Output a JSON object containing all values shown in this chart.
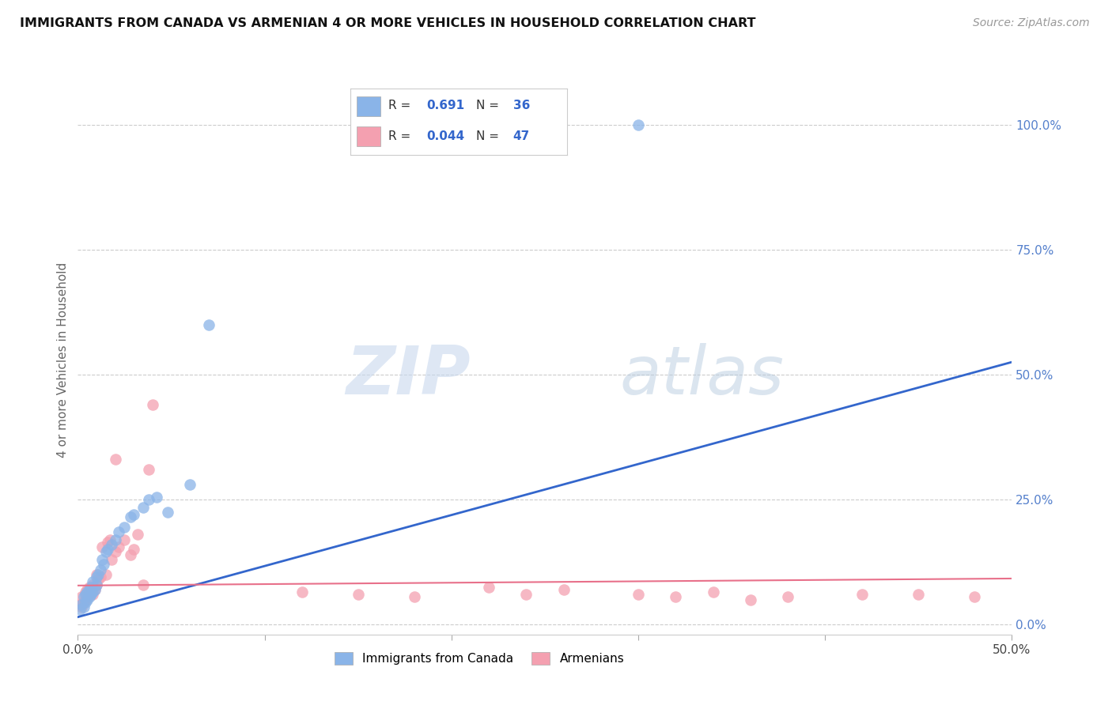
{
  "title": "IMMIGRANTS FROM CANADA VS ARMENIAN 4 OR MORE VEHICLES IN HOUSEHOLD CORRELATION CHART",
  "source": "Source: ZipAtlas.com",
  "ylabel": "4 or more Vehicles in Household",
  "xlim": [
    0.0,
    0.5
  ],
  "ylim": [
    -0.02,
    1.08
  ],
  "xticks": [
    0.0,
    0.1,
    0.2,
    0.3,
    0.4,
    0.5
  ],
  "xtick_labels": [
    "0.0%",
    "",
    "",
    "",
    "",
    "50.0%"
  ],
  "ytick_labels_right": [
    "0.0%",
    "25.0%",
    "50.0%",
    "75.0%",
    "100.0%"
  ],
  "ytick_positions_right": [
    0.0,
    0.25,
    0.5,
    0.75,
    1.0
  ],
  "legend_R1": "0.691",
  "legend_N1": "36",
  "legend_R2": "0.044",
  "legend_N2": "47",
  "legend_label1": "Immigrants from Canada",
  "legend_label2": "Armenians",
  "color_blue": "#8ab4e8",
  "color_pink": "#f4a0b0",
  "color_line_blue": "#3366CC",
  "color_line_pink": "#e8708a",
  "watermark_zip": "ZIP",
  "watermark_atlas": "atlas",
  "background_color": "#ffffff",
  "grid_color": "#cccccc",
  "canada_x": [
    0.001,
    0.002,
    0.003,
    0.003,
    0.004,
    0.004,
    0.005,
    0.005,
    0.006,
    0.006,
    0.007,
    0.007,
    0.008,
    0.008,
    0.009,
    0.01,
    0.01,
    0.011,
    0.012,
    0.013,
    0.014,
    0.015,
    0.016,
    0.018,
    0.02,
    0.022,
    0.025,
    0.028,
    0.03,
    0.035,
    0.038,
    0.042,
    0.048,
    0.06,
    0.07,
    0.3
  ],
  "canada_y": [
    0.03,
    0.04,
    0.035,
    0.055,
    0.045,
    0.06,
    0.05,
    0.065,
    0.055,
    0.07,
    0.06,
    0.075,
    0.065,
    0.085,
    0.07,
    0.08,
    0.095,
    0.1,
    0.11,
    0.13,
    0.12,
    0.145,
    0.15,
    0.16,
    0.17,
    0.185,
    0.195,
    0.215,
    0.22,
    0.235,
    0.25,
    0.255,
    0.225,
    0.28,
    0.6,
    1.0
  ],
  "armenian_x": [
    0.001,
    0.002,
    0.002,
    0.003,
    0.004,
    0.004,
    0.005,
    0.005,
    0.006,
    0.006,
    0.007,
    0.008,
    0.008,
    0.009,
    0.01,
    0.01,
    0.011,
    0.012,
    0.013,
    0.015,
    0.016,
    0.017,
    0.018,
    0.02,
    0.02,
    0.022,
    0.025,
    0.028,
    0.03,
    0.032,
    0.035,
    0.038,
    0.04,
    0.12,
    0.15,
    0.18,
    0.22,
    0.24,
    0.26,
    0.3,
    0.32,
    0.34,
    0.36,
    0.38,
    0.42,
    0.45,
    0.48
  ],
  "armenian_y": [
    0.04,
    0.035,
    0.055,
    0.045,
    0.05,
    0.065,
    0.055,
    0.07,
    0.06,
    0.075,
    0.065,
    0.06,
    0.08,
    0.07,
    0.08,
    0.1,
    0.09,
    0.095,
    0.155,
    0.1,
    0.165,
    0.17,
    0.13,
    0.145,
    0.33,
    0.155,
    0.17,
    0.14,
    0.15,
    0.18,
    0.08,
    0.31,
    0.44,
    0.065,
    0.06,
    0.055,
    0.075,
    0.06,
    0.07,
    0.06,
    0.055,
    0.065,
    0.05,
    0.055,
    0.06,
    0.06,
    0.055
  ]
}
